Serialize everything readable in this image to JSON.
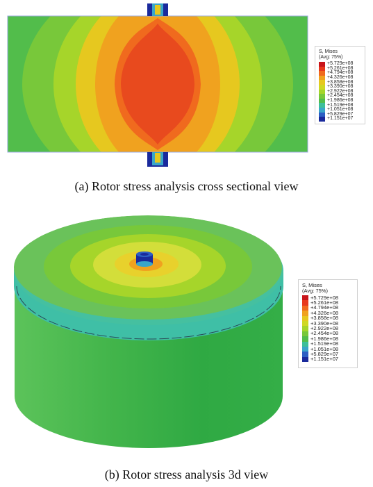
{
  "figure_a": {
    "caption": "(a) Rotor stress analysis cross sectional view",
    "legend": {
      "title": "S, Mises",
      "subtitle": "(Avg: 75%)",
      "values": [
        "+5.729e+08",
        "+5.261e+08",
        "+4.794e+08",
        "+4.326e+08",
        "+3.858e+08",
        "+3.390e+08",
        "+2.922e+08",
        "+2.454e+08",
        "+1.986e+08",
        "+1.519e+08",
        "+1.051e+08",
        "+5.829e+07",
        "+1.151e+07"
      ]
    }
  },
  "figure_b": {
    "caption": "(b) Rotor stress analysis 3d view",
    "legend": {
      "title": "S, Mises",
      "subtitle": "(Avg: 75%)",
      "values": [
        "+5.729e+08",
        "+5.261e+08",
        "+4.794e+08",
        "+4.326e+08",
        "+3.858e+08",
        "+3.390e+08",
        "+2.922e+08",
        "+2.454e+08",
        "+1.986e+08",
        "+1.519e+08",
        "+1.051e+08",
        "+5.829e+07",
        "+1.151e+07"
      ]
    }
  },
  "colors": {
    "contour_scale": [
      "#c8151b",
      "#e8381d",
      "#f06a1e",
      "#f0a21f",
      "#e6c81f",
      "#cfd823",
      "#a6d52a",
      "#78c83a",
      "#52bd4b",
      "#3dbf9a",
      "#3aa6c9",
      "#2d5fc4",
      "#1a2a9c"
    ]
  }
}
